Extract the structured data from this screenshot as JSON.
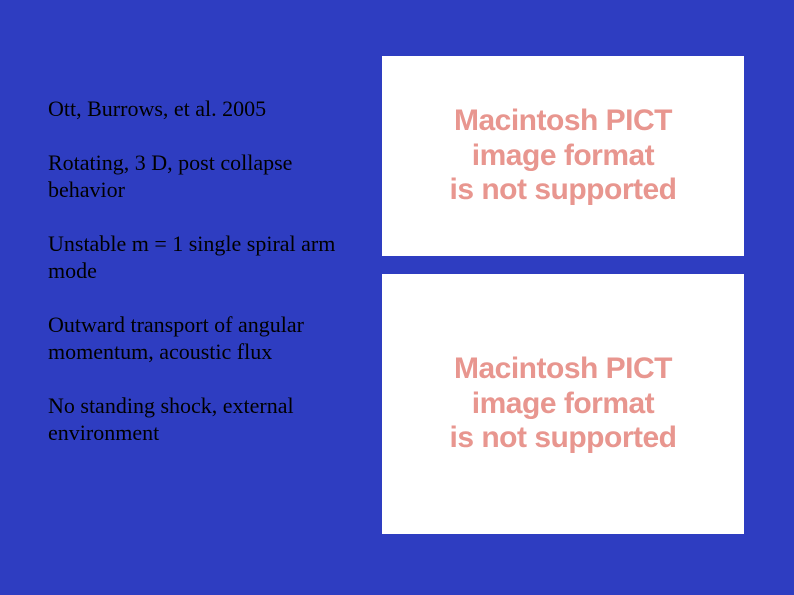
{
  "slide": {
    "background_color": "#2e3dc1",
    "text_color": "#000000",
    "font_family": "Times New Roman",
    "left_text_fontsize": 22,
    "lines": [
      "Ott, Burrows, et al. 2005",
      "Rotating, 3 D, post collapse behavior",
      "Unstable m = 1 single spiral arm mode",
      "Outward transport of angular momentum, acoustic flux",
      "No standing shock, external environment"
    ]
  },
  "placeholder": {
    "line1": "Macintosh PICT",
    "line2": "image format",
    "line3": "is not supported",
    "text_color": "#e8968f",
    "background_color": "#ffffff",
    "font_family": "Arial",
    "font_weight": 900,
    "fontsize": 30
  }
}
